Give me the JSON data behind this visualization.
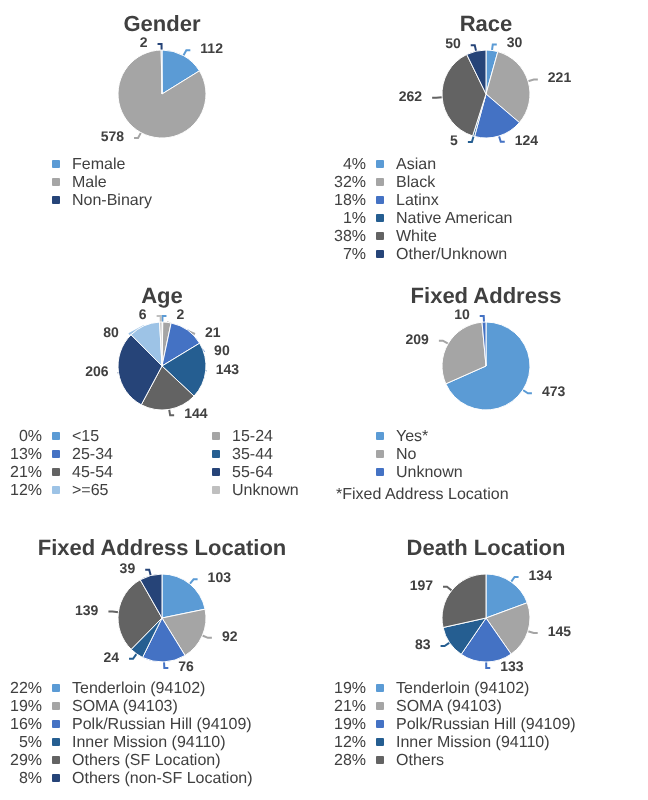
{
  "chart_data": [
    {
      "type": "pie",
      "title": "Gender",
      "categories": [
        "Female",
        "Male",
        "Non-Binary"
      ],
      "values": [
        112,
        578,
        2
      ],
      "colors": [
        "#5b9bd5",
        "#a5a5a5",
        "#264478"
      ],
      "data_labels": true,
      "legend": "bottom"
    },
    {
      "type": "pie",
      "title": "Race",
      "categories": [
        "Asian",
        "Black",
        "Latinx",
        "Native American",
        "White",
        "Other/Unknown"
      ],
      "values": [
        30,
        221,
        124,
        5,
        262,
        50
      ],
      "colors": [
        "#5b9bd5",
        "#a5a5a5",
        "#4472c4",
        "#255e91",
        "#636363",
        "#264478"
      ],
      "data_labels": true,
      "legend": "bottom",
      "annotations": [
        {
          "text": "4%",
          "x": "Asian"
        },
        {
          "text": "32%",
          "x": "Black"
        },
        {
          "text": "18%",
          "x": "Latinx"
        },
        {
          "text": "1%",
          "x": "Native American"
        },
        {
          "text": "38%",
          "x": "White"
        },
        {
          "text": "7%",
          "x": "Other/Unknown"
        }
      ]
    },
    {
      "type": "pie",
      "title": "Age",
      "categories": [
        "<15",
        "15-24",
        "25-34",
        "35-44",
        "45-54",
        "55-64",
        ">=65",
        "Unknown"
      ],
      "values": [
        2,
        21,
        90,
        143,
        144,
        206,
        80,
        6
      ],
      "colors": [
        "#5b9bd5",
        "#a5a5a5",
        "#4472c4",
        "#255e91",
        "#636363",
        "#264478",
        "#9dc3e6",
        "#bfbfbf"
      ],
      "data_labels": true,
      "legend": "bottom",
      "annotations": [
        {
          "text": "0%",
          "x": "<15"
        },
        {
          "text": "13%",
          "x": "25-34"
        },
        {
          "text": "21%",
          "x": "45-54"
        },
        {
          "text": "12%",
          "x": ">=65"
        }
      ]
    },
    {
      "type": "pie",
      "title": "Fixed Address",
      "categories": [
        "Yes*",
        "No",
        "Unknown"
      ],
      "values": [
        473,
        209,
        10
      ],
      "colors": [
        "#5b9bd5",
        "#a5a5a5",
        "#4472c4"
      ],
      "data_labels": true,
      "legend": "bottom",
      "annotations": [
        "*Fixed Address Location"
      ]
    },
    {
      "type": "pie",
      "title": "Fixed Address Location",
      "categories": [
        "Tenderloin (94102)",
        "SOMA (94103)",
        "Polk/Russian Hill (94109)",
        "Inner Mission (94110)",
        "Others (SF Location)",
        "Others (non-SF Location)"
      ],
      "values": [
        103,
        92,
        76,
        24,
        139,
        39
      ],
      "colors": [
        "#5b9bd5",
        "#a5a5a5",
        "#4472c4",
        "#255e91",
        "#636363",
        "#264478"
      ],
      "data_labels": true,
      "legend": "bottom",
      "annotations": [
        {
          "text": "22%",
          "x": "Tenderloin (94102)"
        },
        {
          "text": "19%",
          "x": "SOMA (94103)"
        },
        {
          "text": "16%",
          "x": "Polk/Russian Hill (94109)"
        },
        {
          "text": "5%",
          "x": "Inner Mission (94110)"
        },
        {
          "text": "29%",
          "x": "Others (SF Location)"
        },
        {
          "text": "8%",
          "x": "Others (non-SF Location)"
        }
      ]
    },
    {
      "type": "pie",
      "title": "Death Location",
      "categories": [
        "Tenderloin (94102)",
        "SOMA (94103)",
        "Polk/Russian Hill (94109)",
        "Inner Mission (94110)",
        "Others"
      ],
      "values": [
        134,
        145,
        133,
        83,
        197
      ],
      "colors": [
        "#5b9bd5",
        "#a5a5a5",
        "#4472c4",
        "#255e91",
        "#636363"
      ],
      "data_labels": true,
      "legend": "bottom",
      "annotations": [
        {
          "text": "19%",
          "x": "Tenderloin (94102)"
        },
        {
          "text": "21%",
          "x": "SOMA (94103)"
        },
        {
          "text": "19%",
          "x": "Polk/Russian Hill (94109)"
        },
        {
          "text": "12%",
          "x": "Inner Mission (94110)"
        },
        {
          "text": "28%",
          "x": "Others"
        }
      ]
    }
  ]
}
